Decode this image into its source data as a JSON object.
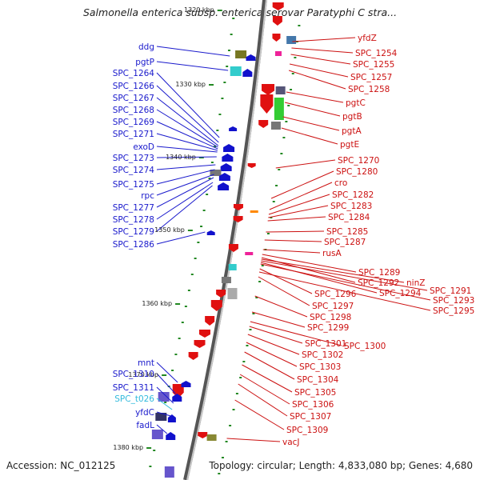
{
  "title": "Salmonella enterica subsp. enterica serovar Paratyphi C stra...",
  "footer": {
    "accession": "Accession: NC_012125",
    "topology": "Topology: circular; Length: 4,833,080 bp; Genes: 4,680"
  },
  "colors": {
    "left_label": "#1a1acc",
    "right_label": "#cc1111",
    "trna_label": "#33bbdd",
    "tick": "#228822",
    "backbone": "#777777"
  },
  "scale": {
    "unit": "kbp",
    "labels": [
      "1320 kbp",
      "1330 kbp",
      "1340 kbp",
      "1350 kbp",
      "1360 kbp",
      "1370 kbp",
      "1380 kbp"
    ]
  },
  "left_genes": [
    {
      "label": "ddg",
      "type": "gene"
    },
    {
      "label": "pgtP",
      "type": "gene"
    },
    {
      "label": "SPC_1264",
      "type": "gene"
    },
    {
      "label": "SPC_1266",
      "type": "gene"
    },
    {
      "label": "SPC_1267",
      "type": "gene"
    },
    {
      "label": "SPC_1268",
      "type": "gene"
    },
    {
      "label": "SPC_1269",
      "type": "gene"
    },
    {
      "label": "SPC_1271",
      "type": "gene"
    },
    {
      "label": "exoD",
      "type": "gene"
    },
    {
      "label": "SPC_1273",
      "type": "gene"
    },
    {
      "label": "SPC_1274",
      "type": "gene"
    },
    {
      "label": "SPC_1275",
      "type": "gene"
    },
    {
      "label": "rpc",
      "type": "gene"
    },
    {
      "label": "SPC_1277",
      "type": "gene"
    },
    {
      "label": "SPC_1278",
      "type": "gene"
    },
    {
      "label": "SPC_1279",
      "type": "gene"
    },
    {
      "label": "SPC_1286",
      "type": "gene"
    },
    {
      "label": "mnt",
      "type": "gene"
    },
    {
      "label": "SPC_1310",
      "type": "gene"
    },
    {
      "label": "SPC_1311",
      "type": "gene"
    },
    {
      "label": "SPC_t026",
      "type": "trna"
    },
    {
      "label": "yfdC",
      "type": "gene"
    },
    {
      "label": "fadL",
      "type": "gene"
    }
  ],
  "right_genes": [
    {
      "label": "yfdZ"
    },
    {
      "label": "SPC_1254"
    },
    {
      "label": "SPC_1255"
    },
    {
      "label": "SPC_1257"
    },
    {
      "label": "SPC_1258"
    },
    {
      "label": "pgtC"
    },
    {
      "label": "pgtB"
    },
    {
      "label": "pgtA"
    },
    {
      "label": "pgtE"
    },
    {
      "label": "SPC_1270"
    },
    {
      "label": "SPC_1280"
    },
    {
      "label": "cro"
    },
    {
      "label": "SPC_1282"
    },
    {
      "label": "SPC_1283"
    },
    {
      "label": "SPC_1284"
    },
    {
      "label": "SPC_1285"
    },
    {
      "label": "SPC_1287"
    },
    {
      "label": "rusA"
    },
    {
      "label": "SPC_1289"
    },
    {
      "label": "SPC_1292"
    },
    {
      "label": "ninZ"
    },
    {
      "label": "SPC_1291"
    },
    {
      "label": "SPC_1294"
    },
    {
      "label": "SPC_1293"
    },
    {
      "label": "SPC_1296"
    },
    {
      "label": "SPC_1295"
    },
    {
      "label": "SPC_1297"
    },
    {
      "label": "SPC_1298"
    },
    {
      "label": "SPC_1299"
    },
    {
      "label": "SPC_1300"
    },
    {
      "label": "SPC_1301"
    },
    {
      "label": "SPC_1302"
    },
    {
      "label": "SPC_1303"
    },
    {
      "label": "SPC_1304"
    },
    {
      "label": "SPC_1305"
    },
    {
      "label": "SPC_1306"
    },
    {
      "label": "SPC_1307"
    },
    {
      "label": "SPC_1309"
    },
    {
      "label": "vacJ"
    }
  ]
}
